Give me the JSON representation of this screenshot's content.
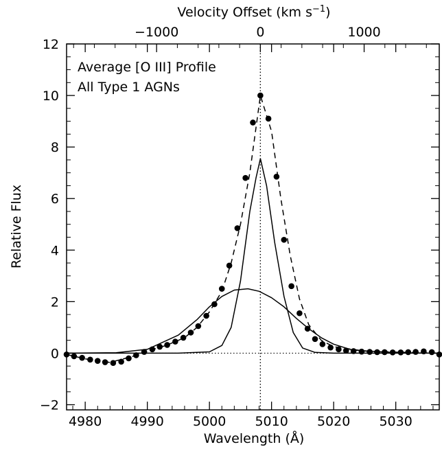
{
  "chart_data": {
    "type": "line",
    "annotations": [
      "Average [O III] Profile",
      "All Type 1 AGNs"
    ],
    "xlabel": "Wavelength (Å)",
    "ylabel": "Relative Flux",
    "top_xlabel_main": "Velocity Offset (km s",
    "top_xlabel_sup": "−1",
    "top_xlabel_close": ")",
    "xlim": [
      4977,
      5037
    ],
    "ylim": [
      -2.2,
      12
    ],
    "rest_wavelength": 5008.2,
    "x_ticks": [
      4980,
      4990,
      5000,
      5010,
      5020,
      5030
    ],
    "x_tick_labels": [
      "4980",
      "4990",
      "5000",
      "5010",
      "5020",
      "5030"
    ],
    "y_ticks": [
      -2,
      0,
      2,
      4,
      6,
      8,
      10,
      12
    ],
    "y_tick_labels": [
      "−2",
      "0",
      "2",
      "4",
      "6",
      "8",
      "10",
      "12"
    ],
    "top_ticks": [
      -1000,
      0,
      1000
    ],
    "top_tick_labels": [
      "−1000",
      "0",
      "1000"
    ],
    "grid": false,
    "series": [
      {
        "style": "points",
        "x": [
          4977.0,
          4978.2,
          4979.5,
          4980.8,
          4982.0,
          4983.2,
          4984.5,
          4985.8,
          4987.0,
          4988.2,
          4989.5,
          4990.8,
          4992.0,
          4993.2,
          4994.5,
          4995.8,
          4997.0,
          4998.2,
          4999.5,
          5000.8,
          5002.0,
          5003.2,
          5004.5,
          5005.8,
          5007.0,
          5008.2,
          5009.5,
          5010.8,
          5012.0,
          5013.2,
          5014.5,
          5015.8,
          5017.0,
          5018.2,
          5019.5,
          5020.8,
          5022.0,
          5023.2,
          5024.5,
          5025.8,
          5027.0,
          5028.2,
          5029.5,
          5030.8,
          5032.0,
          5033.2,
          5034.5,
          5035.8,
          5037.0
        ],
        "y": [
          -0.05,
          -0.12,
          -0.18,
          -0.25,
          -0.3,
          -0.35,
          -0.38,
          -0.33,
          -0.2,
          -0.08,
          0.05,
          0.15,
          0.25,
          0.32,
          0.45,
          0.6,
          0.8,
          1.05,
          1.45,
          1.9,
          2.5,
          3.4,
          4.85,
          6.8,
          8.95,
          10.0,
          9.1,
          6.85,
          4.4,
          2.6,
          1.55,
          0.95,
          0.55,
          0.35,
          0.22,
          0.15,
          0.1,
          0.08,
          0.06,
          0.05,
          0.04,
          0.04,
          0.03,
          0.03,
          0.04,
          0.05,
          0.07,
          0.04,
          -0.05
        ]
      },
      {
        "style": "dashed",
        "x": [
          4977,
          4980,
          4984,
          4988,
          4990,
          4993,
          4996,
          4998,
          5000,
          5002,
          5003.5,
          5005,
          5006.5,
          5008.2,
          5010,
          5011.5,
          5013,
          5014.5,
          5016,
          5018,
          5020,
          5025,
          5030,
          5037
        ],
        "y": [
          -0.05,
          -0.22,
          -0.36,
          -0.1,
          0.08,
          0.3,
          0.6,
          1.0,
          1.6,
          2.4,
          3.5,
          5.0,
          7.0,
          10.0,
          8.6,
          6.0,
          3.8,
          2.1,
          1.1,
          0.5,
          0.25,
          0.08,
          0.04,
          0.0
        ]
      },
      {
        "style": "solid",
        "x": [
          4977,
          4985,
          4990,
          4995,
          4998,
          5000,
          5002,
          5004,
          5006.2,
          5008,
          5010,
          5012,
          5014,
          5016,
          5018,
          5020,
          5023,
          5030,
          5037
        ],
        "y": [
          0.0,
          0.02,
          0.15,
          0.7,
          1.3,
          1.8,
          2.2,
          2.45,
          2.5,
          2.4,
          2.15,
          1.8,
          1.35,
          0.95,
          0.6,
          0.35,
          0.12,
          0.02,
          0.0
        ]
      },
      {
        "style": "solid",
        "x": [
          4977,
          4995,
          5000,
          5002,
          5003.5,
          5005,
          5006.5,
          5007.5,
          5008.2,
          5009.2,
          5010.5,
          5012,
          5013.5,
          5015,
          5017,
          5020,
          5037
        ],
        "y": [
          0.0,
          0.0,
          0.05,
          0.3,
          1.0,
          2.8,
          5.5,
          6.8,
          7.55,
          6.5,
          4.3,
          2.2,
          0.8,
          0.2,
          0.03,
          0.0,
          0.0
        ]
      }
    ]
  }
}
